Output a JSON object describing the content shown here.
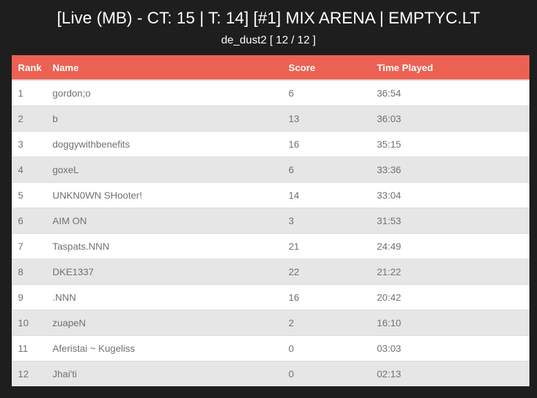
{
  "header": {
    "title": "[Live (MB) - CT: 15 | T: 14] [#1] MIX ARENA | EMPTYC.LT",
    "subtitle": "de_dust2 [ 12 / 12 ]"
  },
  "table": {
    "columns": [
      "Rank",
      "Name",
      "Score",
      "Time Played"
    ],
    "rows": [
      {
        "rank": "1",
        "name": "gordon;o",
        "score": "6",
        "time": "36:54"
      },
      {
        "rank": "2",
        "name": "b",
        "score": "13",
        "time": "36:03"
      },
      {
        "rank": "3",
        "name": "doggywithbenefits",
        "score": "16",
        "time": "35:15"
      },
      {
        "rank": "4",
        "name": "goxeL",
        "score": "6",
        "time": "33:36"
      },
      {
        "rank": "5",
        "name": "UNKN0WN SHooter!",
        "score": "14",
        "time": "33:04"
      },
      {
        "rank": "6",
        "name": "AIM ON",
        "score": "3",
        "time": "31:53"
      },
      {
        "rank": "7",
        "name": "Taspats.NNN",
        "score": "21",
        "time": "24:49"
      },
      {
        "rank": "8",
        "name": "DKE1337",
        "score": "22",
        "time": "21:22"
      },
      {
        "rank": "9",
        "name": ".NNN",
        "score": "16",
        "time": "20:42"
      },
      {
        "rank": "10",
        "name": "zuapeN",
        "score": "2",
        "time": "16:10"
      },
      {
        "rank": "11",
        "name": "Aferistai ~ Kugeliss",
        "score": "0",
        "time": "03:03"
      },
      {
        "rank": "12",
        "name": "Jhai'ti",
        "score": "0",
        "time": "02:13"
      }
    ]
  },
  "colors": {
    "background": "#1e1e1e",
    "header_accent": "#ec6152",
    "row_odd": "#ffffff",
    "row_even": "#e6e6e6",
    "cell_text": "#707070"
  }
}
